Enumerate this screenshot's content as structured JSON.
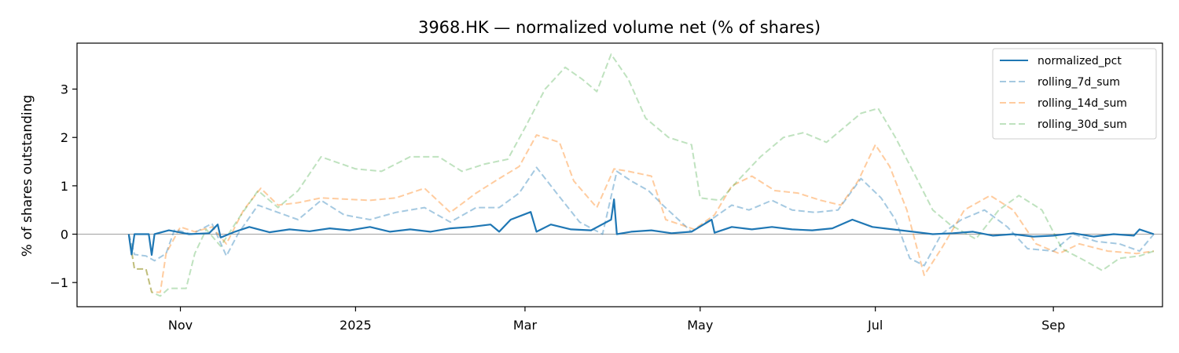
{
  "chart_data": {
    "type": "line",
    "title": "3968.HK — normalized volume net (% of shares)",
    "xlabel": "",
    "ylabel": "% of shares outstanding",
    "x_tick_labels": [
      "Nov",
      "2025",
      "Mar",
      "May",
      "Jul",
      "Sep"
    ],
    "x_tick_dates": [
      "2024-11-01",
      "2025-01-01",
      "2025-03-01",
      "2025-05-01",
      "2025-07-01",
      "2025-09-01"
    ],
    "y_ticks": [
      -1,
      0,
      1,
      2,
      3
    ],
    "y_tick_labels": [
      "−1",
      "0",
      "1",
      "2",
      "3"
    ],
    "xlim": [
      "2024-09-26",
      "2025-10-09"
    ],
    "ylim": [
      -1.5,
      3.95
    ],
    "zero_line": true,
    "grid": false,
    "legend": "top-right",
    "series": [
      {
        "name": "normalized_pct",
        "color": "#1f77b4",
        "style": "solid",
        "alpha": 1.0,
        "points": [
          [
            "2024-10-14",
            0.0
          ],
          [
            "2024-10-15",
            -0.42
          ],
          [
            "2024-10-16",
            0.0
          ],
          [
            "2024-10-21",
            0.0
          ],
          [
            "2024-10-22",
            -0.43
          ],
          [
            "2024-10-23",
            0.0
          ],
          [
            "2024-10-28",
            0.08
          ],
          [
            "2024-11-04",
            0.0
          ],
          [
            "2024-11-11",
            0.02
          ],
          [
            "2024-11-14",
            0.2
          ],
          [
            "2024-11-15",
            -0.07
          ],
          [
            "2024-11-20",
            0.05
          ],
          [
            "2024-11-25",
            0.15
          ],
          [
            "2024-12-02",
            0.04
          ],
          [
            "2024-12-09",
            0.1
          ],
          [
            "2024-12-16",
            0.06
          ],
          [
            "2024-12-23",
            0.12
          ],
          [
            "2024-12-30",
            0.08
          ],
          [
            "2025-01-06",
            0.15
          ],
          [
            "2025-01-13",
            0.05
          ],
          [
            "2025-01-20",
            0.1
          ],
          [
            "2025-01-27",
            0.05
          ],
          [
            "2025-02-03",
            0.12
          ],
          [
            "2025-02-10",
            0.15
          ],
          [
            "2025-02-17",
            0.2
          ],
          [
            "2025-02-20",
            0.05
          ],
          [
            "2025-02-24",
            0.3
          ],
          [
            "2025-03-03",
            0.46
          ],
          [
            "2025-03-05",
            0.05
          ],
          [
            "2025-03-10",
            0.2
          ],
          [
            "2025-03-17",
            0.1
          ],
          [
            "2025-03-24",
            0.08
          ],
          [
            "2025-03-31",
            0.3
          ],
          [
            "2025-04-01",
            0.72
          ],
          [
            "2025-04-02",
            0.0
          ],
          [
            "2025-04-07",
            0.05
          ],
          [
            "2025-04-14",
            0.08
          ],
          [
            "2025-04-21",
            0.02
          ],
          [
            "2025-04-28",
            0.05
          ],
          [
            "2025-05-05",
            0.3
          ],
          [
            "2025-05-06",
            0.03
          ],
          [
            "2025-05-12",
            0.15
          ],
          [
            "2025-05-19",
            0.1
          ],
          [
            "2025-05-26",
            0.15
          ],
          [
            "2025-06-02",
            0.1
          ],
          [
            "2025-06-09",
            0.08
          ],
          [
            "2025-06-16",
            0.12
          ],
          [
            "2025-06-23",
            0.3
          ],
          [
            "2025-06-30",
            0.15
          ],
          [
            "2025-07-07",
            0.1
          ],
          [
            "2025-07-14",
            0.05
          ],
          [
            "2025-07-21",
            0.0
          ],
          [
            "2025-07-28",
            0.02
          ],
          [
            "2025-08-04",
            0.05
          ],
          [
            "2025-08-11",
            -0.03
          ],
          [
            "2025-08-18",
            0.0
          ],
          [
            "2025-08-25",
            -0.05
          ],
          [
            "2025-09-01",
            -0.03
          ],
          [
            "2025-09-08",
            0.02
          ],
          [
            "2025-09-15",
            -0.05
          ],
          [
            "2025-09-22",
            0.0
          ],
          [
            "2025-09-29",
            -0.03
          ],
          [
            "2025-10-01",
            0.1
          ],
          [
            "2025-10-06",
            0.0
          ]
        ]
      },
      {
        "name": "rolling_7d_sum",
        "color": "#1f77b4",
        "style": "dashed",
        "alpha": 0.4,
        "points": [
          [
            "2024-10-14",
            0.0
          ],
          [
            "2024-10-16",
            -0.42
          ],
          [
            "2024-10-20",
            -0.45
          ],
          [
            "2024-10-23",
            -0.55
          ],
          [
            "2024-10-27",
            -0.4
          ],
          [
            "2024-10-30",
            0.1
          ],
          [
            "2024-11-05",
            0.0
          ],
          [
            "2024-11-12",
            0.22
          ],
          [
            "2024-11-17",
            -0.45
          ],
          [
            "2024-11-21",
            0.0
          ],
          [
            "2024-11-28",
            0.6
          ],
          [
            "2024-12-05",
            0.45
          ],
          [
            "2024-12-12",
            0.3
          ],
          [
            "2024-12-20",
            0.7
          ],
          [
            "2024-12-28",
            0.4
          ],
          [
            "2025-01-06",
            0.3
          ],
          [
            "2025-01-15",
            0.45
          ],
          [
            "2025-01-25",
            0.55
          ],
          [
            "2025-02-03",
            0.25
          ],
          [
            "2025-02-12",
            0.55
          ],
          [
            "2025-02-20",
            0.55
          ],
          [
            "2025-02-27",
            0.85
          ],
          [
            "2025-03-05",
            1.38
          ],
          [
            "2025-03-12",
            0.85
          ],
          [
            "2025-03-20",
            0.25
          ],
          [
            "2025-03-28",
            0.0
          ],
          [
            "2025-04-02",
            1.3
          ],
          [
            "2025-04-07",
            1.1
          ],
          [
            "2025-04-13",
            0.9
          ],
          [
            "2025-04-18",
            0.6
          ],
          [
            "2025-04-28",
            0.05
          ],
          [
            "2025-05-06",
            0.35
          ],
          [
            "2025-05-12",
            0.6
          ],
          [
            "2025-05-18",
            0.5
          ],
          [
            "2025-05-26",
            0.7
          ],
          [
            "2025-06-02",
            0.5
          ],
          [
            "2025-06-10",
            0.45
          ],
          [
            "2025-06-18",
            0.5
          ],
          [
            "2025-06-26",
            1.15
          ],
          [
            "2025-07-03",
            0.75
          ],
          [
            "2025-07-08",
            0.3
          ],
          [
            "2025-07-13",
            -0.5
          ],
          [
            "2025-07-18",
            -0.65
          ],
          [
            "2025-07-24",
            0.0
          ],
          [
            "2025-07-31",
            0.3
          ],
          [
            "2025-08-08",
            0.5
          ],
          [
            "2025-08-16",
            0.15
          ],
          [
            "2025-08-23",
            -0.3
          ],
          [
            "2025-09-01",
            -0.35
          ],
          [
            "2025-09-08",
            0.0
          ],
          [
            "2025-09-16",
            -0.15
          ],
          [
            "2025-09-24",
            -0.2
          ],
          [
            "2025-10-01",
            -0.35
          ],
          [
            "2025-10-06",
            0.0
          ]
        ]
      },
      {
        "name": "rolling_14d_sum",
        "color": "#ff7f0e",
        "style": "dashed",
        "alpha": 0.4,
        "points": [
          [
            "2024-10-14",
            0.0
          ],
          [
            "2024-10-16",
            -0.72
          ],
          [
            "2024-10-20",
            -0.72
          ],
          [
            "2024-10-22",
            -1.2
          ],
          [
            "2024-10-25",
            -1.2
          ],
          [
            "2024-10-27",
            -0.4
          ],
          [
            "2024-11-01",
            0.15
          ],
          [
            "2024-11-06",
            0.05
          ],
          [
            "2024-11-12",
            0.15
          ],
          [
            "2024-11-17",
            -0.2
          ],
          [
            "2024-11-23",
            0.5
          ],
          [
            "2024-11-29",
            0.95
          ],
          [
            "2024-12-05",
            0.6
          ],
          [
            "2024-12-12",
            0.65
          ],
          [
            "2024-12-20",
            0.75
          ],
          [
            "2025-01-06",
            0.7
          ],
          [
            "2025-01-15",
            0.75
          ],
          [
            "2025-01-25",
            0.95
          ],
          [
            "2025-02-03",
            0.45
          ],
          [
            "2025-02-12",
            0.85
          ],
          [
            "2025-02-20",
            1.15
          ],
          [
            "2025-02-27",
            1.4
          ],
          [
            "2025-03-05",
            2.05
          ],
          [
            "2025-03-13",
            1.9
          ],
          [
            "2025-03-18",
            1.1
          ],
          [
            "2025-03-26",
            0.55
          ],
          [
            "2025-04-01",
            1.35
          ],
          [
            "2025-04-06",
            1.3
          ],
          [
            "2025-04-14",
            1.2
          ],
          [
            "2025-04-19",
            0.3
          ],
          [
            "2025-04-29",
            0.1
          ],
          [
            "2025-05-06",
            0.4
          ],
          [
            "2025-05-12",
            1.0
          ],
          [
            "2025-05-19",
            1.2
          ],
          [
            "2025-05-27",
            0.9
          ],
          [
            "2025-06-04",
            0.85
          ],
          [
            "2025-06-12",
            0.7
          ],
          [
            "2025-06-19",
            0.6
          ],
          [
            "2025-06-25",
            1.1
          ],
          [
            "2025-07-01",
            1.85
          ],
          [
            "2025-07-06",
            1.4
          ],
          [
            "2025-07-12",
            0.5
          ],
          [
            "2025-07-18",
            -0.85
          ],
          [
            "2025-07-24",
            -0.3
          ],
          [
            "2025-08-01",
            0.5
          ],
          [
            "2025-08-10",
            0.8
          ],
          [
            "2025-08-18",
            0.5
          ],
          [
            "2025-08-26",
            -0.2
          ],
          [
            "2025-09-03",
            -0.4
          ],
          [
            "2025-09-10",
            -0.2
          ],
          [
            "2025-09-20",
            -0.35
          ],
          [
            "2025-09-30",
            -0.4
          ],
          [
            "2025-10-06",
            -0.35
          ]
        ]
      },
      {
        "name": "rolling_30d_sum",
        "color": "#2ca02c",
        "style": "dashed",
        "alpha": 0.3,
        "points": [
          [
            "2024-10-14",
            0.0
          ],
          [
            "2024-10-16",
            -0.72
          ],
          [
            "2024-10-20",
            -0.72
          ],
          [
            "2024-10-22",
            -1.2
          ],
          [
            "2024-10-25",
            -1.28
          ],
          [
            "2024-10-28",
            -1.12
          ],
          [
            "2024-11-03",
            -1.12
          ],
          [
            "2024-11-06",
            -0.4
          ],
          [
            "2024-11-10",
            0.1
          ],
          [
            "2024-11-15",
            -0.25
          ],
          [
            "2024-11-21",
            0.3
          ],
          [
            "2024-11-28",
            0.9
          ],
          [
            "2024-12-05",
            0.55
          ],
          [
            "2024-12-12",
            0.9
          ],
          [
            "2024-12-20",
            1.6
          ],
          [
            "2025-01-01",
            1.35
          ],
          [
            "2025-01-10",
            1.3
          ],
          [
            "2025-01-20",
            1.6
          ],
          [
            "2025-01-30",
            1.6
          ],
          [
            "2025-02-07",
            1.3
          ],
          [
            "2025-02-15",
            1.45
          ],
          [
            "2025-02-23",
            1.55
          ],
          [
            "2025-03-01",
            2.2
          ],
          [
            "2025-03-08",
            3.0
          ],
          [
            "2025-03-15",
            3.45
          ],
          [
            "2025-03-21",
            3.2
          ],
          [
            "2025-03-26",
            2.95
          ],
          [
            "2025-03-31",
            3.72
          ],
          [
            "2025-04-06",
            3.2
          ],
          [
            "2025-04-12",
            2.4
          ],
          [
            "2025-04-20",
            2.0
          ],
          [
            "2025-04-28",
            1.85
          ],
          [
            "2025-05-01",
            0.75
          ],
          [
            "2025-05-08",
            0.7
          ],
          [
            "2025-05-14",
            1.1
          ],
          [
            "2025-05-22",
            1.6
          ],
          [
            "2025-05-30",
            2.0
          ],
          [
            "2025-06-06",
            2.1
          ],
          [
            "2025-06-14",
            1.9
          ],
          [
            "2025-06-20",
            2.2
          ],
          [
            "2025-06-26",
            2.5
          ],
          [
            "2025-07-02",
            2.6
          ],
          [
            "2025-07-08",
            2.0
          ],
          [
            "2025-07-15",
            1.2
          ],
          [
            "2025-07-21",
            0.5
          ],
          [
            "2025-07-27",
            0.2
          ],
          [
            "2025-08-05",
            -0.1
          ],
          [
            "2025-08-13",
            0.5
          ],
          [
            "2025-08-20",
            0.8
          ],
          [
            "2025-08-28",
            0.5
          ],
          [
            "2025-09-04",
            -0.3
          ],
          [
            "2025-09-12",
            -0.55
          ],
          [
            "2025-09-18",
            -0.75
          ],
          [
            "2025-09-24",
            -0.5
          ],
          [
            "2025-10-01",
            -0.45
          ],
          [
            "2025-10-06",
            -0.35
          ]
        ]
      }
    ]
  }
}
